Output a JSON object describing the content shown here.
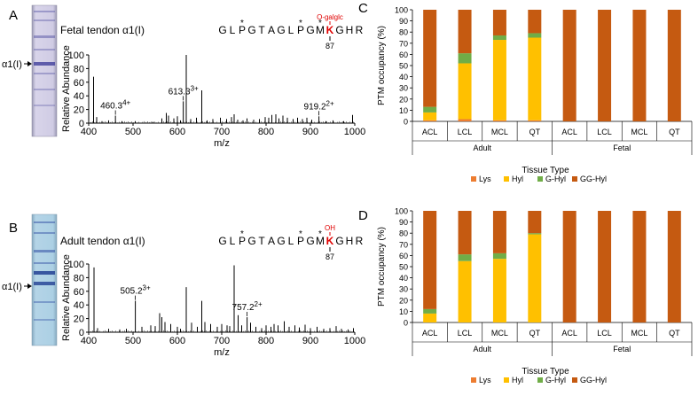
{
  "panels": {
    "A": {
      "letter": "A",
      "gel_label": "α1(I)",
      "title": "Fetal tendon α1(I)",
      "sequence": [
        "G",
        "L",
        "P",
        "G",
        "T",
        "A",
        "G",
        "L",
        "P",
        "G",
        "M",
        "K",
        "G",
        "H",
        "R"
      ],
      "star_positions": [
        2,
        8,
        10
      ],
      "modified_index": 11,
      "modification_label": "O-galglc",
      "residue_number": "87",
      "ylabel": "Relative Abundance",
      "xlabel": "m/z",
      "peak_labels": [
        {
          "mz": 460.3,
          "text": "460.3",
          "charge": "4+"
        },
        {
          "mz": 613.3,
          "text": "613.3",
          "charge": "3+"
        },
        {
          "mz": 919.2,
          "text": "919.2",
          "charge": "2+"
        }
      ]
    },
    "B": {
      "letter": "B",
      "gel_label": "α1(I)",
      "title": "Adult tendon α1(I)",
      "sequence": [
        "G",
        "L",
        "P",
        "G",
        "T",
        "A",
        "G",
        "L",
        "P",
        "G",
        "M",
        "K",
        "G",
        "H",
        "R"
      ],
      "star_positions": [
        2,
        8,
        10
      ],
      "modified_index": 11,
      "modification_label": "OH",
      "residue_number": "87",
      "ylabel": "Relative Abundance",
      "xlabel": "m/z",
      "peak_labels": [
        {
          "mz": 505.2,
          "text": "505.2",
          "charge": "3+"
        },
        {
          "mz": 757.2,
          "text": "757.2",
          "charge": "2+"
        }
      ]
    },
    "C": {
      "letter": "C",
      "ylabel": "PTM occupancy (%)",
      "xlabel": "Tissue Type",
      "group_labels": [
        "Adult",
        "Fetal"
      ]
    },
    "D": {
      "letter": "D",
      "ylabel": "PTM occupancy (%)",
      "xlabel": "Tissue Type",
      "group_labels": [
        "Adult",
        "Fetal"
      ]
    }
  },
  "colors": {
    "Lys": "#ed7d31",
    "Hyl": "#ffc000",
    "G-Hyl": "#70ad47",
    "GG-Hyl": "#c55a11",
    "red_label": "#e00000",
    "gel_A": "#c8c4e0",
    "gel_B": "#a9cbe0"
  },
  "chart_data": [
    {
      "type": "line",
      "title": "Fetal tendon α1(I)",
      "xlabel": "m/z",
      "ylabel": "Relative Abundance",
      "xlim": [
        400,
        1000
      ],
      "ylim": [
        0,
        100
      ],
      "xticks": [
        400,
        500,
        600,
        700,
        800,
        900,
        1000
      ],
      "yticks": [
        0,
        20,
        40,
        60,
        80,
        100
      ],
      "peaks": [
        [
          411,
          68
        ],
        [
          418,
          9
        ],
        [
          430,
          3
        ],
        [
          445,
          4
        ],
        [
          460.3,
          11
        ],
        [
          475,
          3
        ],
        [
          505,
          3
        ],
        [
          545,
          2
        ],
        [
          565,
          7
        ],
        [
          575,
          15
        ],
        [
          580,
          11
        ],
        [
          592,
          7
        ],
        [
          600,
          10
        ],
        [
          607,
          4
        ],
        [
          613.3,
          32
        ],
        [
          620,
          100
        ],
        [
          630,
          6
        ],
        [
          643,
          8
        ],
        [
          655,
          48
        ],
        [
          667,
          4
        ],
        [
          680,
          6
        ],
        [
          697,
          8
        ],
        [
          711,
          6
        ],
        [
          722,
          9
        ],
        [
          728,
          13
        ],
        [
          736,
          5
        ],
        [
          748,
          4
        ],
        [
          757,
          7
        ],
        [
          772,
          5
        ],
        [
          785,
          6
        ],
        [
          798,
          9
        ],
        [
          806,
          8
        ],
        [
          813,
          12
        ],
        [
          822,
          13
        ],
        [
          829,
          7
        ],
        [
          838,
          11
        ],
        [
          848,
          8
        ],
        [
          861,
          6
        ],
        [
          871,
          8
        ],
        [
          882,
          6
        ],
        [
          892,
          8
        ],
        [
          903,
          5
        ],
        [
          919.2,
          10
        ],
        [
          935,
          3
        ],
        [
          951,
          4
        ],
        [
          975,
          3
        ],
        [
          995,
          12
        ]
      ]
    },
    {
      "type": "line",
      "title": "Adult tendon α1(I)",
      "xlabel": "m/z",
      "ylabel": "Relative Abundance",
      "xlim": [
        400,
        1000
      ],
      "ylim": [
        0,
        100
      ],
      "xticks": [
        400,
        500,
        600,
        700,
        800,
        900,
        1000
      ],
      "yticks": [
        0,
        20,
        40,
        60,
        80,
        100
      ],
      "peaks": [
        [
          412,
          95
        ],
        [
          420,
          6
        ],
        [
          445,
          5
        ],
        [
          470,
          4
        ],
        [
          485,
          5
        ],
        [
          505.2,
          46
        ],
        [
          520,
          8
        ],
        [
          540,
          10
        ],
        [
          550,
          9
        ],
        [
          560,
          28
        ],
        [
          565,
          22
        ],
        [
          572,
          15
        ],
        [
          585,
          12
        ],
        [
          600,
          8
        ],
        [
          607,
          5
        ],
        [
          620,
          66
        ],
        [
          632,
          14
        ],
        [
          645,
          8
        ],
        [
          655,
          46
        ],
        [
          662,
          15
        ],
        [
          675,
          12
        ],
        [
          690,
          8
        ],
        [
          700,
          12
        ],
        [
          712,
          10
        ],
        [
          718,
          9
        ],
        [
          728,
          98
        ],
        [
          737,
          25
        ],
        [
          745,
          10
        ],
        [
          757.2,
          22
        ],
        [
          765,
          14
        ],
        [
          777,
          8
        ],
        [
          790,
          6
        ],
        [
          800,
          10
        ],
        [
          811,
          8
        ],
        [
          818,
          12
        ],
        [
          827,
          10
        ],
        [
          841,
          16
        ],
        [
          852,
          8
        ],
        [
          865,
          10
        ],
        [
          875,
          7
        ],
        [
          888,
          11
        ],
        [
          900,
          6
        ],
        [
          915,
          8
        ],
        [
          930,
          5
        ],
        [
          944,
          6
        ],
        [
          958,
          9
        ],
        [
          970,
          5
        ],
        [
          985,
          4
        ],
        [
          997,
          6
        ]
      ]
    },
    {
      "type": "bar",
      "stacked": true,
      "ylabel": "PTM occupancy (%)",
      "xlabel": "Tissue Type",
      "ylim": [
        0,
        100
      ],
      "yticks": [
        0,
        10,
        20,
        30,
        40,
        50,
        60,
        70,
        80,
        90,
        100
      ],
      "categories": [
        "ACL",
        "LCL",
        "MCL",
        "QT",
        "ACL",
        "LCL",
        "MCL",
        "QT"
      ],
      "groups": [
        {
          "name": "Adult",
          "size": 4
        },
        {
          "name": "Fetal",
          "size": 4
        }
      ],
      "series": [
        {
          "name": "Lys",
          "values": [
            1,
            2,
            1,
            1,
            0,
            0,
            0,
            0
          ]
        },
        {
          "name": "Hyl",
          "values": [
            7,
            50,
            72,
            74,
            0,
            0,
            0,
            0
          ]
        },
        {
          "name": "G-Hyl",
          "values": [
            5,
            9,
            4,
            4,
            0,
            0,
            0,
            0
          ]
        },
        {
          "name": "GG-Hyl",
          "values": [
            87,
            39,
            23,
            21,
            100,
            100,
            100,
            100
          ]
        }
      ]
    },
    {
      "type": "bar",
      "stacked": true,
      "ylabel": "PTM occupancy (%)",
      "xlabel": "Tissue Type",
      "ylim": [
        0,
        100
      ],
      "yticks": [
        0,
        10,
        20,
        30,
        40,
        50,
        60,
        70,
        80,
        90,
        100
      ],
      "categories": [
        "ACL",
        "LCL",
        "MCL",
        "QT",
        "ACL",
        "LCL",
        "MCL",
        "QT"
      ],
      "groups": [
        {
          "name": "Adult",
          "size": 4
        },
        {
          "name": "Fetal",
          "size": 4
        }
      ],
      "series": [
        {
          "name": "Lys",
          "values": [
            0,
            0,
            0,
            0,
            0,
            0,
            0,
            0
          ]
        },
        {
          "name": "Hyl",
          "values": [
            8,
            55,
            57,
            79,
            0,
            0,
            0,
            0
          ]
        },
        {
          "name": "G-Hyl",
          "values": [
            4,
            6,
            5,
            1,
            0,
            0,
            0,
            0
          ]
        },
        {
          "name": "GG-Hyl",
          "values": [
            88,
            39,
            38,
            20,
            100,
            100,
            100,
            100
          ]
        }
      ]
    }
  ]
}
